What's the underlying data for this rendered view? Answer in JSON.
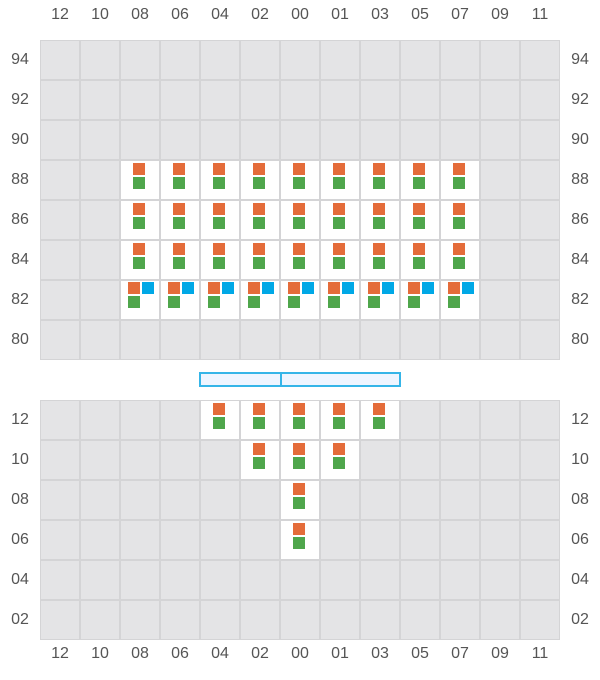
{
  "columns": [
    "12",
    "10",
    "08",
    "06",
    "04",
    "02",
    "00",
    "01",
    "03",
    "05",
    "07",
    "09",
    "11"
  ],
  "upper_rows": [
    "94",
    "92",
    "90",
    "88",
    "86",
    "84",
    "82",
    "80"
  ],
  "lower_rows": [
    "12",
    "10",
    "08",
    "06",
    "04",
    "02"
  ],
  "colors": {
    "orange": "#e46c3a",
    "blue": "#00a8e6",
    "green": "#4fa64c",
    "cell": "#e4e4e6",
    "occupied": "#ffffff",
    "border": "#d4d4d6",
    "bar": "#35b5e8"
  },
  "upper_occupied": [
    {
      "row": "88",
      "cols": [
        "08",
        "06",
        "04",
        "02",
        "00",
        "01",
        "03",
        "05",
        "07"
      ],
      "items": [
        "orange",
        "green"
      ]
    },
    {
      "row": "86",
      "cols": [
        "08",
        "06",
        "04",
        "02",
        "00",
        "01",
        "03",
        "05",
        "07"
      ],
      "items": [
        "orange",
        "green"
      ]
    },
    {
      "row": "84",
      "cols": [
        "08",
        "06",
        "04",
        "02",
        "00",
        "01",
        "03",
        "05",
        "07"
      ],
      "items": [
        "orange",
        "green"
      ]
    },
    {
      "row": "82",
      "cols": [
        "08",
        "06",
        "04",
        "02",
        "00",
        "01",
        "03",
        "05",
        "07"
      ],
      "items": [
        "orange",
        "blue",
        "green"
      ]
    }
  ],
  "lower_occupied": [
    {
      "row": "12",
      "cols": [
        "04",
        "02",
        "00",
        "01",
        "03"
      ],
      "items": [
        "orange",
        "green"
      ]
    },
    {
      "row": "10",
      "cols": [
        "02",
        "00",
        "01"
      ],
      "items": [
        "orange",
        "green"
      ]
    },
    {
      "row": "08",
      "cols": [
        "00"
      ],
      "items": [
        "orange",
        "green"
      ]
    },
    {
      "row": "06",
      "cols": [
        "00"
      ],
      "items": [
        "orange",
        "green"
      ]
    }
  ]
}
